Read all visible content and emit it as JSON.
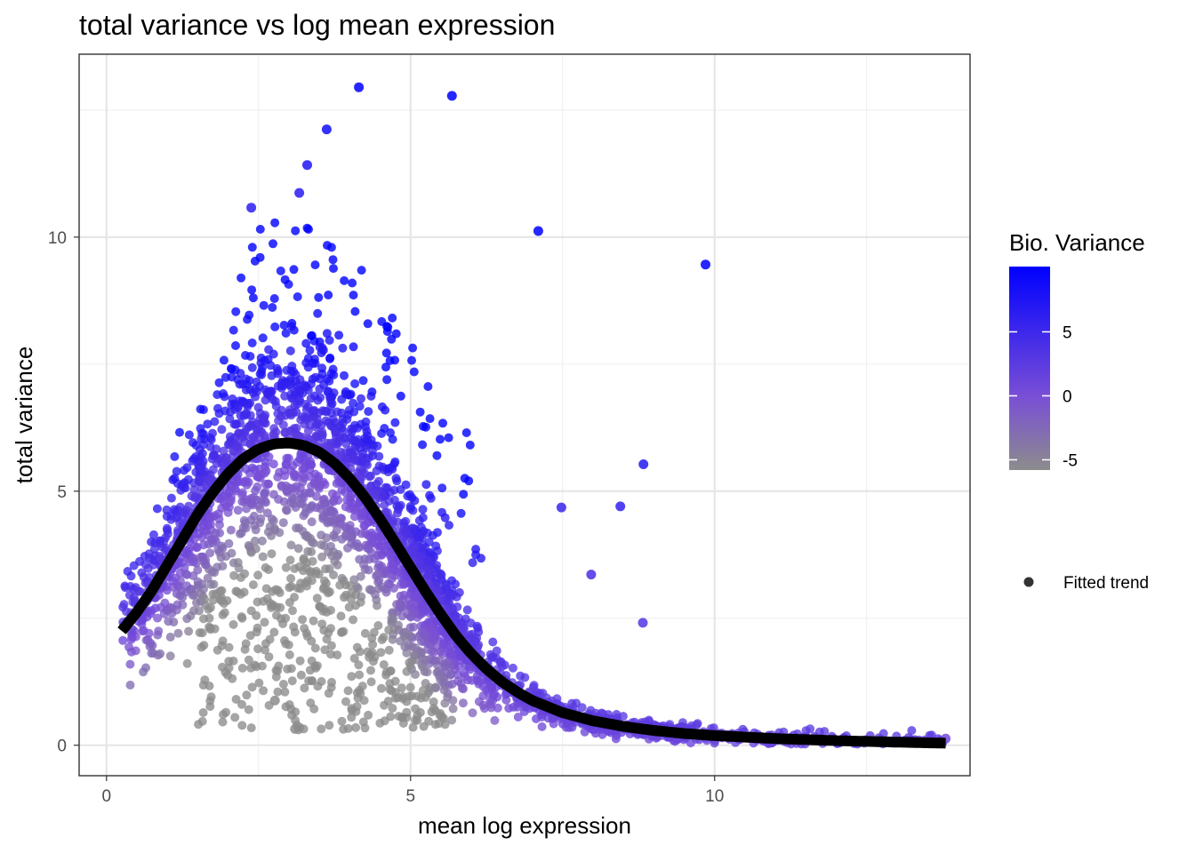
{
  "chart_data": {
    "type": "scatter",
    "title": "total variance vs log mean expression",
    "xlabel": "mean log expression",
    "ylabel": "total variance",
    "xlim": [
      -0.45,
      14.2
    ],
    "ylim": [
      -0.6,
      13.6
    ],
    "x_ticks": [
      0,
      5,
      10
    ],
    "y_ticks": [
      0,
      5,
      10
    ],
    "grid": true,
    "colors": {
      "low": "#8c8c8c",
      "mid": "#7a4fd6",
      "high": "#0000ff",
      "trend_line": "#000000",
      "trend_legend_point": "#333333",
      "panel_border": "#333333",
      "grid_major": "#e6e6e6",
      "grid_minor": "#f0f0f0"
    },
    "color_legend": {
      "title": "Bio. Variance",
      "range": [
        -5.8,
        10.1
      ],
      "ticks": [
        5,
        0,
        -5
      ],
      "tick_labels": [
        "5",
        "0",
        "-5"
      ],
      "position": "right"
    },
    "trend_legend": {
      "label": "Fitted trend",
      "position": "right"
    },
    "highlighted_points": [
      {
        "x": 4.15,
        "y": 12.95
      },
      {
        "x": 5.68,
        "y": 12.78
      },
      {
        "x": 3.62,
        "y": 12.12
      },
      {
        "x": 3.3,
        "y": 11.42
      },
      {
        "x": 3.17,
        "y": 10.87
      },
      {
        "x": 2.38,
        "y": 10.58
      },
      {
        "x": 7.1,
        "y": 10.12
      },
      {
        "x": 9.85,
        "y": 9.46
      },
      {
        "x": 8.83,
        "y": 5.53
      },
      {
        "x": 8.45,
        "y": 4.7
      },
      {
        "x": 7.48,
        "y": 4.68
      },
      {
        "x": 7.97,
        "y": 3.36
      },
      {
        "x": 8.82,
        "y": 2.41
      },
      {
        "x": 3.1,
        "y": 0.32
      },
      {
        "x": 2.77,
        "y": 0.88
      },
      {
        "x": 13.8,
        "y": 0.13
      }
    ],
    "fitted_trend": {
      "name": "Fitted trend",
      "x": [
        0.25,
        0.5,
        0.75,
        1.0,
        1.25,
        1.5,
        1.75,
        2.0,
        2.25,
        2.5,
        2.75,
        3.0,
        3.25,
        3.5,
        3.75,
        4.0,
        4.25,
        4.5,
        4.75,
        5.0,
        5.25,
        5.5,
        5.75,
        6.0,
        6.25,
        6.5,
        6.75,
        7.0,
        7.5,
        8.0,
        8.5,
        9.0,
        9.5,
        10.0,
        11.0,
        12.0,
        13.0,
        13.8
      ],
      "y": [
        2.25,
        2.62,
        3.05,
        3.55,
        4.05,
        4.55,
        4.98,
        5.35,
        5.64,
        5.83,
        5.93,
        5.95,
        5.9,
        5.77,
        5.55,
        5.25,
        4.88,
        4.45,
        3.98,
        3.5,
        3.02,
        2.57,
        2.15,
        1.8,
        1.5,
        1.25,
        1.05,
        0.88,
        0.64,
        0.48,
        0.37,
        0.29,
        0.23,
        0.19,
        0.13,
        0.09,
        0.06,
        0.04
      ]
    }
  }
}
